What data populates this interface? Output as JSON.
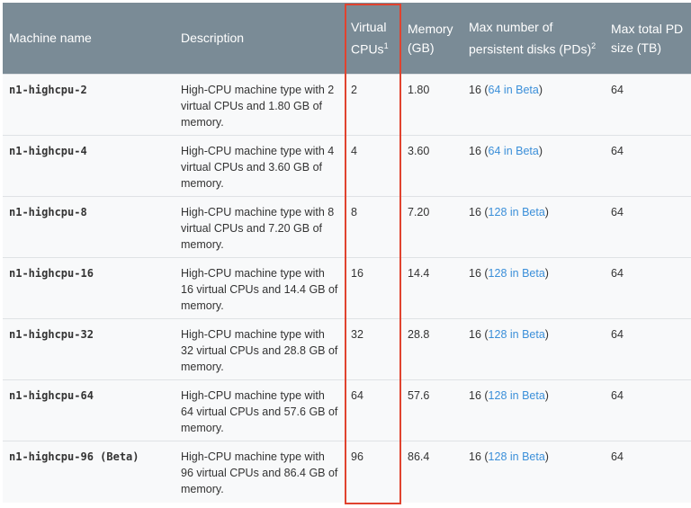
{
  "headers": {
    "machine_name": "Machine name",
    "description": "Description",
    "vcpus": "Virtual CPUs",
    "vcpus_sup": "1",
    "memory": "Memory (GB)",
    "max_pds": "Max number of persistent disks (PDs)",
    "max_pds_sup": "2",
    "max_pd_size": "Max total PD size (TB)"
  },
  "rows": [
    {
      "name": "n1-highcpu-2",
      "desc": "High-CPU machine type with 2 virtual CPUs and 1.80 GB of memory.",
      "vcpus": "2",
      "memory": "1.80",
      "pds": "16 (",
      "pds_link": "64 in Beta",
      "pds_end": ")",
      "size": "64"
    },
    {
      "name": "n1-highcpu-4",
      "desc": "High-CPU machine type with 4 virtual CPUs and 3.60 GB of memory.",
      "vcpus": "4",
      "memory": "3.60",
      "pds": "16 (",
      "pds_link": "64 in Beta",
      "pds_end": ")",
      "size": "64"
    },
    {
      "name": "n1-highcpu-8",
      "desc": "High-CPU machine type with 8 virtual CPUs and 7.20 GB of memory.",
      "vcpus": "8",
      "memory": "7.20",
      "pds": "16 (",
      "pds_link": "128 in Beta",
      "pds_end": ")",
      "size": "64"
    },
    {
      "name": "n1-highcpu-16",
      "desc": "High-CPU machine type with 16 virtual CPUs and 14.4 GB of memory.",
      "vcpus": "16",
      "memory": "14.4",
      "pds": "16 (",
      "pds_link": "128 in Beta",
      "pds_end": ")",
      "size": "64"
    },
    {
      "name": "n1-highcpu-32",
      "desc": "High-CPU machine type with 32 virtual CPUs and 28.8 GB of memory.",
      "vcpus": "32",
      "memory": "28.8",
      "pds": "16 (",
      "pds_link": "128 in Beta",
      "pds_end": ")",
      "size": "64"
    },
    {
      "name": "n1-highcpu-64",
      "desc": "High-CPU machine type with 64 virtual CPUs and 57.6 GB of memory.",
      "vcpus": "64",
      "memory": "57.6",
      "pds": "16 (",
      "pds_link": "128 in Beta",
      "pds_end": ")",
      "size": "64"
    },
    {
      "name": "n1-highcpu-96 (Beta)",
      "desc": "High-CPU machine type with 96 virtual CPUs and 86.4 GB of memory.",
      "vcpus": "96",
      "memory": "86.4",
      "pds": "16 (",
      "pds_link": "128 in Beta",
      "pds_end": ")",
      "size": "64"
    }
  ],
  "colors": {
    "header_bg": "#7a8b96",
    "link": "#3b8fd9",
    "highlight": "#e0432f"
  }
}
